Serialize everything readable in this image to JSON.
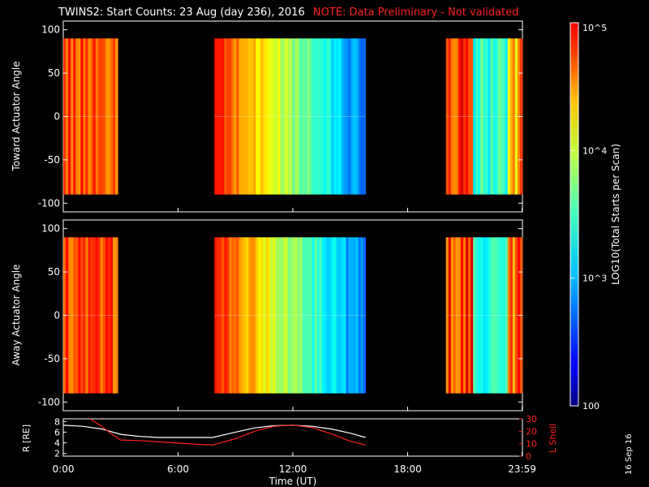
{
  "header": {
    "title": "TWINS2: Start Counts: 23 Aug (day 236), 2016",
    "note": "NOTE: Data Preliminary - Not validated"
  },
  "stamp": "16 Sep 16",
  "colors": {
    "background": "#000000",
    "axis": "#ffffff",
    "note": "#ff2020",
    "r_line": "#ffffff",
    "l_line": "#ff2020"
  },
  "chart_data": [
    {
      "type": "heatmap",
      "name": "toward",
      "ylabel": "Toward Actuator Angle",
      "ylim": [
        -110,
        110
      ],
      "yticks": [
        -100,
        -50,
        0,
        50,
        100
      ],
      "xlim": [
        0,
        24
      ],
      "data_blocks": [
        {
          "t_start": 0.0,
          "t_end": 2.85,
          "profile": "orange"
        },
        {
          "t_start": 7.9,
          "t_end": 15.8,
          "profile": "fade"
        },
        {
          "t_start": 20.0,
          "t_end": 24.0,
          "profile": "mixed"
        }
      ],
      "angle_range": [
        -90,
        90
      ]
    },
    {
      "type": "heatmap",
      "name": "away",
      "ylabel": "Away Actuator Angle",
      "ylim": [
        -110,
        110
      ],
      "yticks": [
        -100,
        -50,
        0,
        50,
        100
      ],
      "xlim": [
        0,
        24
      ],
      "data_blocks": [
        {
          "t_start": 0.0,
          "t_end": 2.85,
          "profile": "orange"
        },
        {
          "t_start": 7.9,
          "t_end": 15.8,
          "profile": "fade"
        },
        {
          "t_start": 20.0,
          "t_end": 24.0,
          "profile": "mixed"
        }
      ],
      "angle_range": [
        -90,
        90
      ]
    },
    {
      "type": "colorbar",
      "label": "LOG10(Total Starts per Scan)",
      "scale": "log",
      "range": [
        100,
        100000
      ],
      "ticks": [
        {
          "value": 100,
          "label": "100"
        },
        {
          "value": 1000,
          "label": "10^3"
        },
        {
          "value": 10000,
          "label": "10^4"
        },
        {
          "value": 100000,
          "label": "10^5"
        }
      ]
    },
    {
      "type": "line",
      "name": "orbit",
      "xlabel": "Time (UT)",
      "xlim": [
        0,
        24
      ],
      "xticks": [
        {
          "value": 0,
          "label": "0:00"
        },
        {
          "value": 6,
          "label": "6:00"
        },
        {
          "value": 12,
          "label": "12:00"
        },
        {
          "value": 18,
          "label": "18:00"
        },
        {
          "value": 23.983,
          "label": "23:59"
        }
      ],
      "left_axis": {
        "label": "R [RE]",
        "ylim": [
          1.5,
          8.5
        ],
        "yticks": [
          2,
          4,
          6,
          8
        ]
      },
      "right_axis": {
        "label": "L Shell",
        "ylim": [
          0,
          30
        ],
        "yticks": [
          0,
          10,
          20,
          30
        ]
      },
      "series": [
        {
          "name": "R",
          "axis": "left",
          "x": [
            0,
            1,
            2,
            3,
            4,
            5,
            6,
            7,
            7.8,
            9,
            10,
            11,
            12,
            13,
            14,
            15,
            15.8
          ],
          "y": [
            7.3,
            7.1,
            6.6,
            5.6,
            5.2,
            5.0,
            5.0,
            5.0,
            5.0,
            6.0,
            6.8,
            7.2,
            7.3,
            7.1,
            6.6,
            5.8,
            5.0
          ]
        },
        {
          "name": "L Shell",
          "axis": "right",
          "x": [
            1.4,
            2.0,
            2.5,
            3.0,
            4,
            5,
            6,
            7,
            7.8,
            9,
            10,
            11,
            12,
            13,
            14,
            15,
            15.8
          ],
          "y": [
            30,
            24,
            18,
            13,
            12.5,
            11.5,
            10.5,
            9.5,
            9,
            14,
            20,
            24,
            25,
            23,
            18,
            12,
            9
          ]
        }
      ]
    }
  ]
}
